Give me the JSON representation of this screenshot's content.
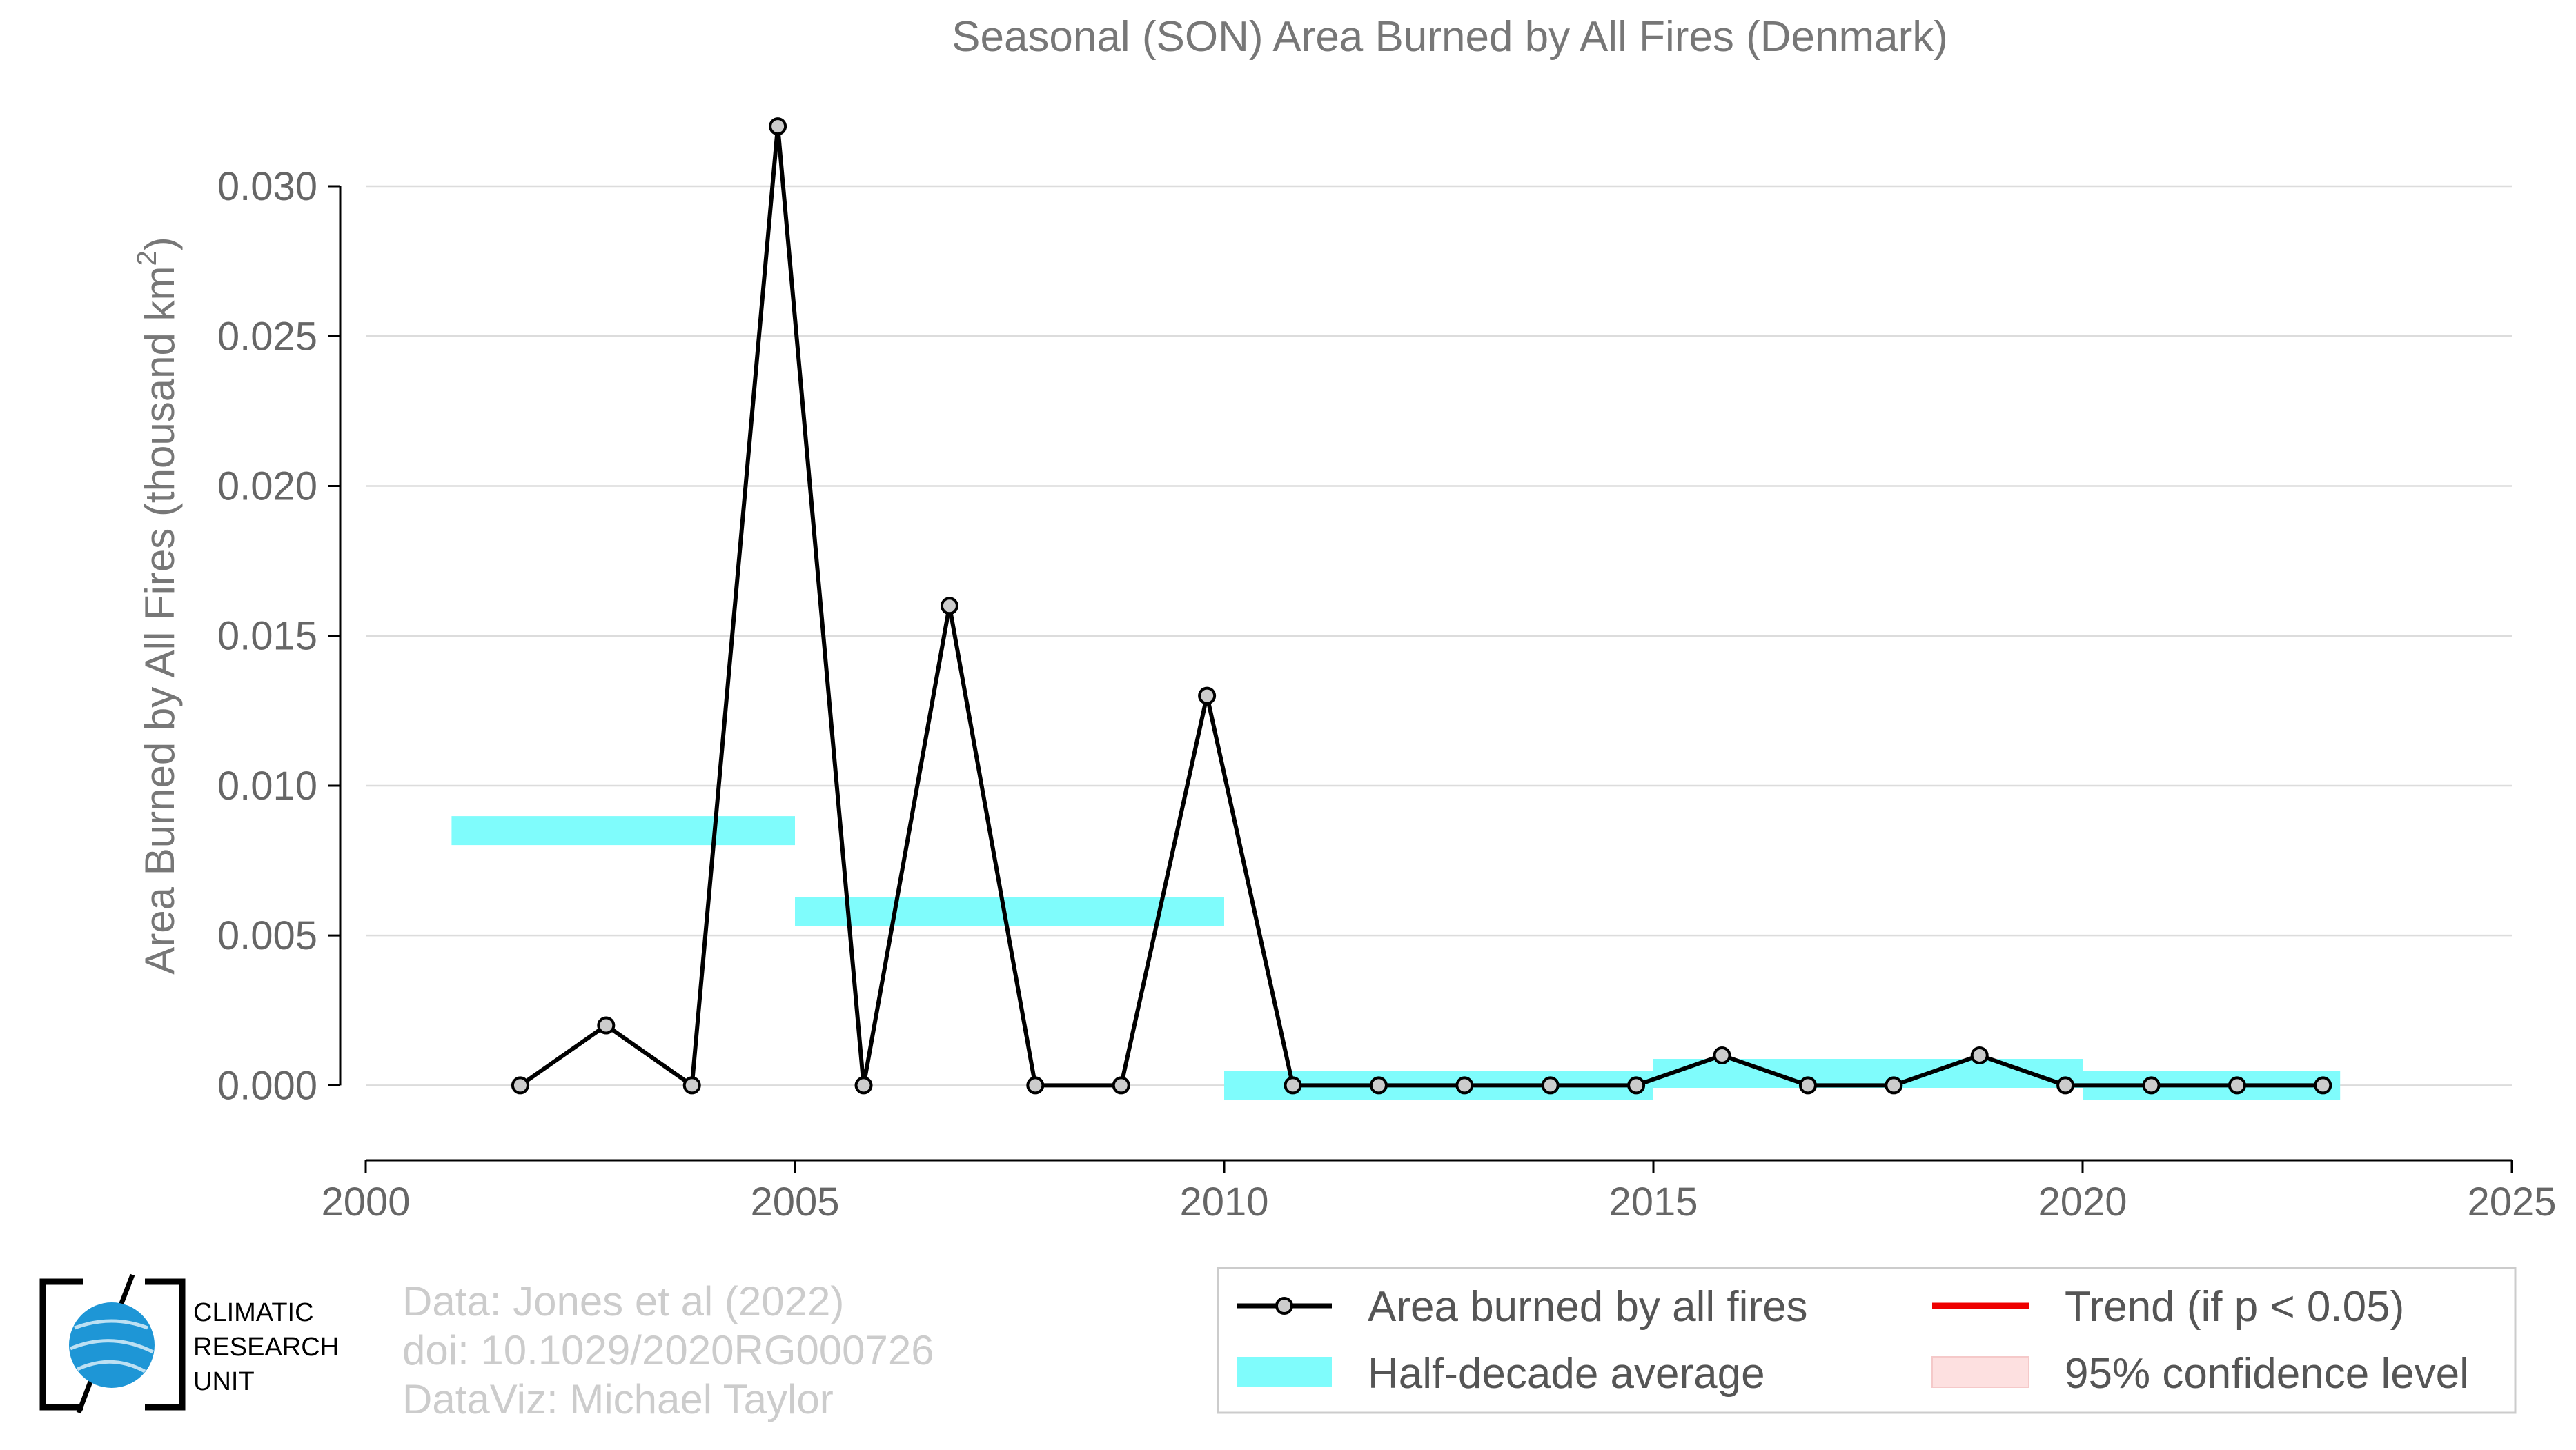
{
  "chart_data": {
    "type": "line",
    "title": "Seasonal (SON) Area Burned by All Fires (Denmark)",
    "ylabel": "Area Burned by All Fires (thousand km",
    "ylabel_superscript": "2",
    "ylabel_suffix": ")",
    "xlim": [
      2000,
      2025
    ],
    "ylim": [
      -0.0025,
      0.0335
    ],
    "x_ticks": [
      2000,
      2005,
      2010,
      2015,
      2020,
      2025
    ],
    "x_tick_labels": [
      "2000",
      "2005",
      "2010",
      "2015",
      "2020",
      "2025"
    ],
    "y_ticks": [
      0.0,
      0.005,
      0.01,
      0.015,
      0.02,
      0.025,
      0.03
    ],
    "y_tick_labels": [
      "0.000",
      "0.005",
      "0.010",
      "0.015",
      "0.020",
      "0.025",
      "0.030"
    ],
    "grid": "horizontal",
    "series": [
      {
        "name": "Area burned by all fires",
        "color": "#000000",
        "marker_fill": "#cccccc",
        "x": [
          2001.8,
          2002.8,
          2003.8,
          2004.8,
          2005.8,
          2006.8,
          2007.8,
          2008.8,
          2009.8,
          2010.8,
          2011.8,
          2012.8,
          2013.8,
          2014.8,
          2015.8,
          2016.8,
          2017.8,
          2018.8,
          2019.8,
          2020.8,
          2021.8,
          2022.8
        ],
        "y": [
          0.0,
          0.002,
          0.0,
          0.032,
          0.0,
          0.016,
          0.0,
          0.0,
          0.013,
          0.0,
          0.0,
          0.0,
          0.0,
          0.0,
          0.001,
          0.0,
          0.0,
          0.001,
          0.0,
          0.0,
          0.0,
          0.0
        ]
      }
    ],
    "half_decade_average": {
      "name": "Half-decade average",
      "color": "#7ffcfc",
      "segments": [
        {
          "x_start": 2001,
          "x_end": 2005,
          "y": 0.0085
        },
        {
          "x_start": 2005,
          "x_end": 2010,
          "y": 0.0058
        },
        {
          "x_start": 2010,
          "x_end": 2015,
          "y": 0.0
        },
        {
          "x_start": 2015,
          "x_end": 2020,
          "y": 0.0004
        },
        {
          "x_start": 2020,
          "x_end": 2023,
          "y": 0.0
        }
      ]
    },
    "legend": {
      "placement": "bottom-right",
      "items": [
        {
          "label": "Area burned by all fires",
          "kind": "line-marker",
          "color": "#000000"
        },
        {
          "label": "Trend (if p < 0.05)",
          "kind": "line",
          "color": "#ee0000"
        },
        {
          "label": "Half-decade average",
          "kind": "band",
          "color": "#7ffcfc"
        },
        {
          "label": "95% confidence level",
          "kind": "band",
          "color": "#fde0e0"
        }
      ]
    }
  },
  "credits": {
    "line1": "Data: Jones et al (2022)",
    "line2": "doi: 10.1029/2020RG000726",
    "line3": "DataViz: Michael Taylor"
  },
  "logo": {
    "line1": "CLIMATIC",
    "line2": "RESEARCH",
    "line3": "UNIT",
    "globe_color": "#1e96d6"
  }
}
